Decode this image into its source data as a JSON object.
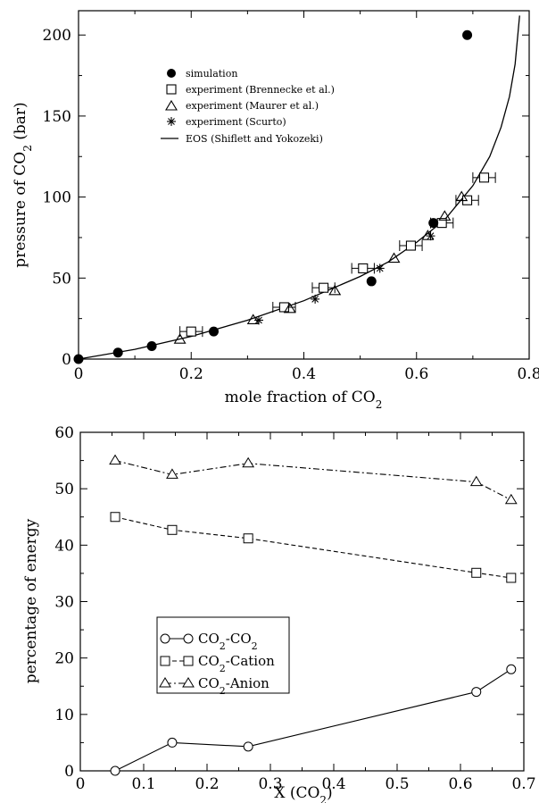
{
  "chart_data": [
    {
      "type": "scatter",
      "title": "",
      "xlabel": "mole fraction of CO",
      "xlabel_sub": "2",
      "ylabel": "pressure of CO",
      "ylabel_sub": "2",
      "ylabel_unit": " (bar)",
      "xlim": [
        0,
        0.8
      ],
      "ylim": [
        0,
        215
      ],
      "xticks": [
        "0",
        "0.2",
        "0.4",
        "0.6",
        "0.8"
      ],
      "yticks": [
        "0",
        "50",
        "100",
        "150",
        "200"
      ],
      "legend_position": "upper-left",
      "series": [
        {
          "name": "simulation",
          "marker": "filled-circle",
          "x": [
            0.0,
            0.07,
            0.13,
            0.24,
            0.52,
            0.63,
            0.69
          ],
          "y": [
            0,
            4,
            8,
            17,
            48,
            84,
            200
          ]
        },
        {
          "name": "experiment (Brennecke et al.)",
          "marker": "open-square",
          "x": [
            0.2,
            0.365,
            0.435,
            0.505,
            0.59,
            0.645,
            0.69,
            0.72
          ],
          "y": [
            17,
            32,
            44,
            56,
            70,
            84,
            98,
            112
          ],
          "xerr": [
            0.02,
            0.02,
            0.02,
            0.02,
            0.02,
            0.02,
            0.02,
            0.02
          ]
        },
        {
          "name": "experiment (Maurer et al.)",
          "marker": "open-triangle",
          "x": [
            0.18,
            0.31,
            0.375,
            0.455,
            0.56,
            0.62,
            0.65,
            0.68
          ],
          "y": [
            12,
            24,
            31,
            42,
            62,
            76,
            88,
            100
          ]
        },
        {
          "name": "experiment (Scurto)",
          "marker": "asterisk",
          "x": [
            0.32,
            0.42,
            0.535,
            0.625
          ],
          "y": [
            24,
            37,
            56,
            76
          ]
        },
        {
          "name": "EOS (Shiflett and Yokozeki)",
          "marker": "line",
          "x": [
            0.0,
            0.1,
            0.2,
            0.3,
            0.4,
            0.5,
            0.55,
            0.6,
            0.65,
            0.7,
            0.73,
            0.75,
            0.765,
            0.775,
            0.783
          ],
          "y": [
            0,
            6,
            14,
            24,
            36,
            51,
            60,
            72,
            86,
            107,
            125,
            143,
            162,
            182,
            212
          ]
        }
      ]
    },
    {
      "type": "line",
      "title": "",
      "xlabel": "X (CO",
      "xlabel_sub": "2",
      "xlabel_end": ")",
      "ylabel": "percentage of energy",
      "xlim": [
        0,
        0.7
      ],
      "ylim": [
        0,
        60
      ],
      "xticks": [
        "0",
        "0.1",
        "0.2",
        "0.3",
        "0.4",
        "0.5",
        "0.6",
        "0.7"
      ],
      "yticks": [
        "0",
        "10",
        "20",
        "30",
        "40",
        "50",
        "60"
      ],
      "legend_position": "lower-left",
      "x": [
        0.055,
        0.145,
        0.265,
        0.625,
        0.68
      ],
      "series": [
        {
          "name_main": "CO",
          "name_sub": "2",
          "name_tail": "-CO",
          "name_sub2": "2",
          "marker": "circle",
          "dash": "solid",
          "values": [
            0,
            5,
            4.3,
            14,
            18
          ]
        },
        {
          "name_main": "CO",
          "name_sub": "2",
          "name_tail": "-Cation",
          "name_sub2": "",
          "marker": "square",
          "dash": "dashed",
          "values": [
            45,
            42.7,
            41.2,
            35.1,
            34.2
          ]
        },
        {
          "name_main": "CO",
          "name_sub": "2",
          "name_tail": "-Anion",
          "name_sub2": "",
          "marker": "triangle",
          "dash": "dashdot",
          "values": [
            55,
            52.5,
            54.5,
            51.2,
            48
          ]
        }
      ]
    }
  ]
}
